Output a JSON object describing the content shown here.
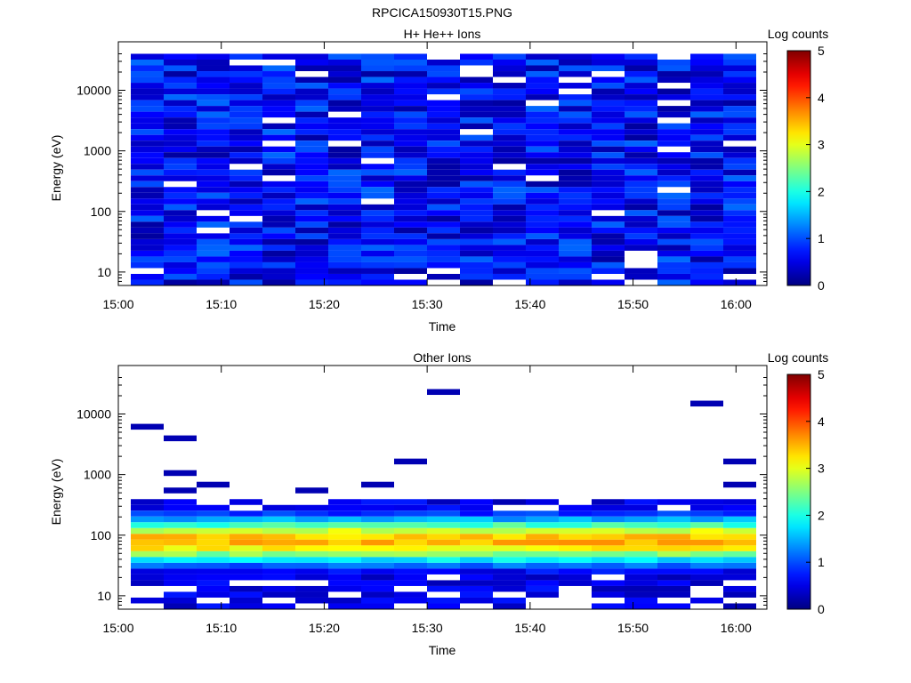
{
  "file_title": "RPCICA150930T15.PNG",
  "colorbar": {
    "label": "Log counts",
    "ticks": [
      "0",
      "1",
      "2",
      "3",
      "4",
      "5"
    ],
    "range": [
      0,
      5
    ],
    "colormap": "jet"
  },
  "chart_data": [
    {
      "type": "heatmap",
      "title": "H+ He++ Ions",
      "xlabel": "Time",
      "ylabel": "Energy (eV)",
      "x_ticks": [
        "15:00",
        "15:10",
        "15:20",
        "15:30",
        "15:40",
        "15:50",
        "16:00"
      ],
      "y_ticks": [
        "10",
        "100",
        "1000",
        "10000"
      ],
      "y_scale": "log",
      "ylim": [
        6,
        45000
      ],
      "xlim_minutes": [
        0,
        63
      ],
      "time_bins": [
        "15:01",
        "15:04",
        "15:07",
        "15:10",
        "15:14",
        "15:17",
        "15:20",
        "15:23",
        "15:27",
        "15:30",
        "15:33",
        "15:36",
        "15:40",
        "15:43",
        "15:46",
        "15:49",
        "15:53",
        "15:56",
        "15:59",
        "16:01"
      ],
      "energy_range_eV": [
        6,
        40000
      ],
      "value_range_log_counts": [
        0,
        1.1
      ]
    },
    {
      "type": "heatmap",
      "title": "Other Ions",
      "xlabel": "Time",
      "ylabel": "Energy (eV)",
      "x_ticks": [
        "15:00",
        "15:10",
        "15:20",
        "15:30",
        "15:40",
        "15:50",
        "16:00"
      ],
      "y_ticks": [
        "10",
        "100",
        "1000",
        "10000"
      ],
      "y_scale": "log",
      "ylim": [
        6,
        45000
      ],
      "xlim_minutes": [
        0,
        63
      ],
      "peak_energy_eV": 80,
      "peak_log_counts": 3.5,
      "value_range_log_counts": [
        0,
        3.5
      ]
    }
  ]
}
